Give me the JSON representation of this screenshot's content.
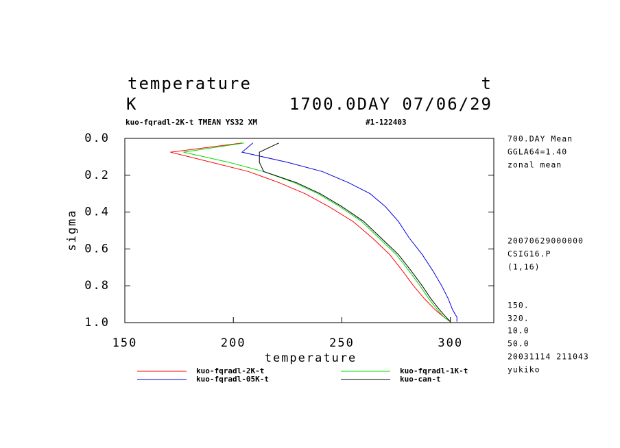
{
  "chart_data": {
    "type": "line",
    "title": "temperature",
    "title_right": "t",
    "unit": "K",
    "time": "1700.0DAY 07/06/29",
    "subtitle": "kuo-fqradl-2K-t TMEAN YS32 XM",
    "subtitle_right": "#1-122403",
    "xlabel": "temperature",
    "ylabel": "sigma",
    "notes": [
      "700.DAY Mean",
      "GGLA64=1.40",
      "zonal mean",
      "20070629000000",
      "CSIG16.P",
      "(1,16)",
      "150.",
      "320.",
      "10.0",
      "50.0",
      "20031114 211043",
      "yukiko"
    ],
    "xlim": [
      150,
      320
    ],
    "xticks": [
      150,
      200,
      250,
      300
    ],
    "ylim": [
      0,
      1
    ],
    "yticks": [
      {
        "value": 0,
        "label": "0.0"
      },
      {
        "value": 0.2,
        "label": "0.2"
      },
      {
        "value": 0.4,
        "label": "0.4"
      },
      {
        "value": 0.6,
        "label": "0.6"
      },
      {
        "value": 0.8,
        "label": "0.8"
      },
      {
        "value": 1,
        "label": "1.0"
      }
    ],
    "y": [
      0.025,
      0.075,
      0.13,
      0.18,
      0.24,
      0.3,
      0.37,
      0.45,
      0.54,
      0.63,
      0.72,
      0.8,
      0.87,
      0.93,
      0.97,
      0.995
    ],
    "series": [
      {
        "name": "kuo-fqradl-2K-t",
        "color": "#ff0000",
        "values": [
          204,
          171,
          190,
          207,
          221,
          233,
          244,
          255,
          264,
          272,
          278,
          283,
          288,
          293,
          297,
          300
        ]
      },
      {
        "name": "kuo-fqradl-1K-t",
        "color": "#00dd00",
        "values": [
          205,
          177,
          198,
          214,
          228,
          239,
          249,
          259,
          267,
          275,
          281,
          286,
          290,
          294,
          297,
          300
        ]
      },
      {
        "name": "kuo-fqradl-05K-t",
        "color": "#0000dd",
        "values": [
          209,
          204,
          225,
          241,
          253,
          263,
          270,
          276,
          281,
          287,
          292,
          296,
          299,
          301,
          303,
          303
        ]
      },
      {
        "name": "kuo-can-t",
        "color": "#000000",
        "values": [
          221,
          212,
          212,
          214,
          229,
          240,
          250,
          260,
          268,
          276,
          282,
          287,
          291,
          295,
          298,
          300
        ]
      }
    ]
  }
}
